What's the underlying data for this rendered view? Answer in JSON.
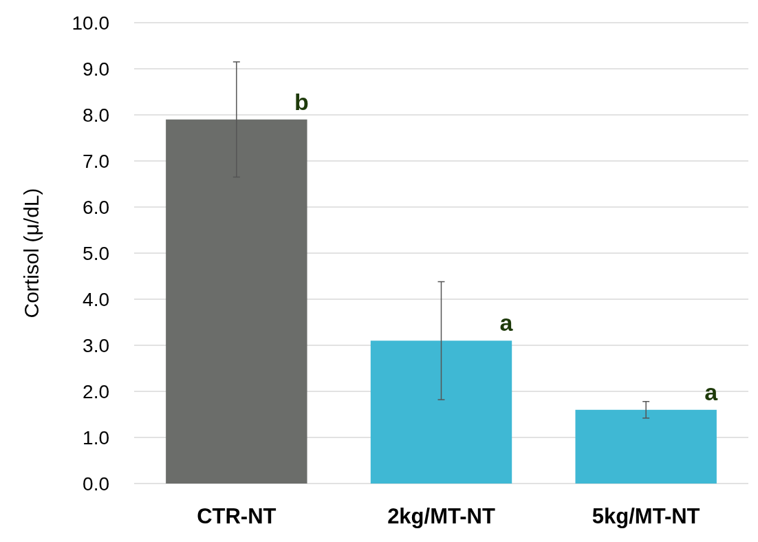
{
  "chart_data": {
    "type": "bar",
    "ylabel": "Cortisol (μ/dL)",
    "categories": [
      "CTR-NT",
      "2kg/MT-NT",
      "5kg/MT-NT"
    ],
    "values": [
      7.9,
      3.1,
      1.6
    ],
    "colors": [
      "#6b6d6a",
      "#3fb8d4",
      "#3fb8d4"
    ],
    "errors": [
      1.25,
      1.28,
      0.18
    ],
    "ylim": [
      0,
      10
    ],
    "yticks": [
      {
        "value": 0,
        "label": "0.0"
      },
      {
        "value": 1,
        "label": "1.0"
      },
      {
        "value": 2,
        "label": "2.0"
      },
      {
        "value": 3,
        "label": "3.0"
      },
      {
        "value": 4,
        "label": "4.0"
      },
      {
        "value": 5,
        "label": "5.0"
      },
      {
        "value": 6,
        "label": "6.0"
      },
      {
        "value": 7,
        "label": "7.0"
      },
      {
        "value": 8,
        "label": "8.0"
      },
      {
        "value": 9,
        "label": "9.0"
      },
      {
        "value": 10,
        "label": "10.0"
      }
    ],
    "grid": "y",
    "annotations": [
      {
        "text": "b",
        "x": "CTR-NT",
        "y": 7.9
      },
      {
        "text": "a",
        "x": "2kg/MT-NT",
        "y": 3.1
      },
      {
        "text": "a",
        "x": "5kg/MT-NT",
        "y": 1.6
      }
    ]
  }
}
